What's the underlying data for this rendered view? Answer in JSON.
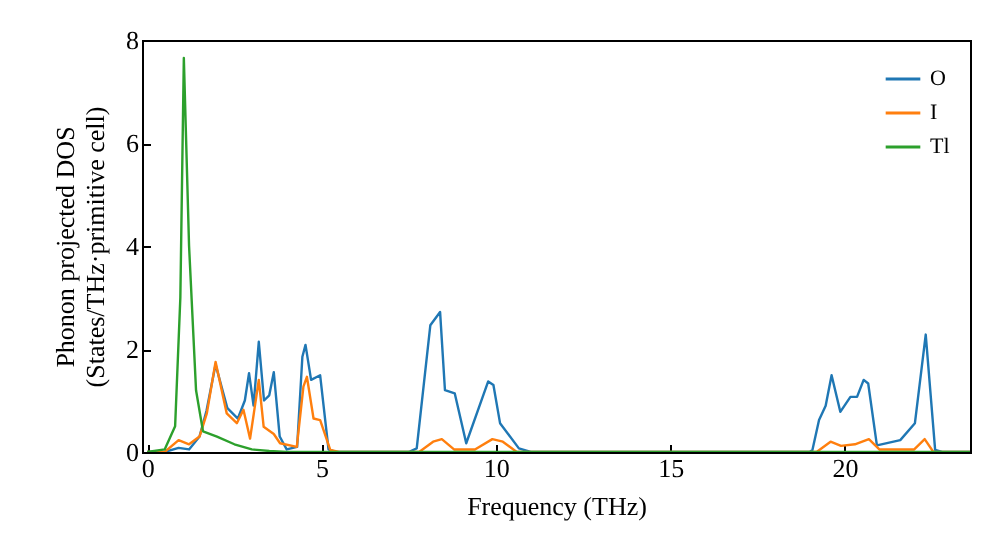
{
  "chart_data": {
    "type": "line",
    "xlabel": "Frequency (THz)",
    "ylabel": "Phonon projected DOS\n(States/THz·primitive cell)",
    "xlim": [
      -0.15,
      23.6
    ],
    "ylim": [
      0,
      8
    ],
    "xticks": [
      0,
      5,
      10,
      15,
      20
    ],
    "yticks": [
      0,
      2,
      4,
      6,
      8
    ],
    "grid": false,
    "legend": "top right",
    "line_style": "solid",
    "marker": "none",
    "series": [
      {
        "name": "O",
        "color": "#1f77b4",
        "x": [
          0,
          0.5,
          0.9,
          1.2,
          1.5,
          1.7,
          1.96,
          2.3,
          2.6,
          2.8,
          2.92,
          3.05,
          3.2,
          3.35,
          3.5,
          3.63,
          3.8,
          4.0,
          4.3,
          4.45,
          4.54,
          4.7,
          4.96,
          5.2,
          5.4,
          7.5,
          7.73,
          8.12,
          8.4,
          8.54,
          8.82,
          9.15,
          9.78,
          9.93,
          10.12,
          10.66,
          11,
          19,
          19.08,
          19.27,
          19.46,
          19.63,
          19.88,
          20.17,
          20.36,
          20.55,
          20.68,
          20.93,
          21.6,
          22.02,
          22.33,
          22.6,
          22.8,
          23.6
        ],
        "values": [
          0,
          0,
          0.08,
          0.05,
          0.3,
          0.8,
          1.7,
          0.85,
          0.65,
          1.0,
          1.53,
          0.9,
          2.14,
          1.0,
          1.1,
          1.55,
          0.3,
          0.05,
          0.1,
          1.85,
          2.08,
          1.4,
          1.49,
          0.05,
          0,
          0,
          0.07,
          2.46,
          2.72,
          1.2,
          1.14,
          0.17,
          1.37,
          1.3,
          0.56,
          0.07,
          0,
          0,
          0.04,
          0.62,
          0.9,
          1.49,
          0.78,
          1.07,
          1.07,
          1.4,
          1.33,
          0.13,
          0.23,
          0.56,
          2.28,
          0.04,
          0,
          0
        ]
      },
      {
        "name": "I",
        "color": "#ff7f0e",
        "x": [
          0,
          0.5,
          0.9,
          1.2,
          1.5,
          1.71,
          1.96,
          2.28,
          2.57,
          2.76,
          2.95,
          3.2,
          3.34,
          3.63,
          3.81,
          4.29,
          4.48,
          4.58,
          4.77,
          4.96,
          5.25,
          5.5,
          7.8,
          8.2,
          8.45,
          8.8,
          9.4,
          9.9,
          10.2,
          10.6,
          19.2,
          19.6,
          19.9,
          20.3,
          20.7,
          21,
          22,
          22.3,
          22.55,
          23.6
        ],
        "values": [
          0,
          0,
          0.23,
          0.15,
          0.3,
          0.75,
          1.75,
          0.75,
          0.56,
          0.82,
          0.26,
          1.4,
          0.49,
          0.35,
          0.17,
          0.1,
          1.27,
          1.46,
          0.65,
          0.62,
          0.04,
          0,
          0,
          0.2,
          0.25,
          0.05,
          0.05,
          0.25,
          0.2,
          0,
          0,
          0.2,
          0.12,
          0.15,
          0.25,
          0.05,
          0.05,
          0.25,
          0,
          0
        ]
      },
      {
        "name": "Tl",
        "color": "#2ca02c",
        "x": [
          0,
          0.5,
          0.8,
          0.95,
          1.05,
          1.2,
          1.4,
          1.6,
          2.0,
          2.5,
          3.0,
          3.5,
          4.0,
          23.6
        ],
        "values": [
          0,
          0.05,
          0.5,
          3.0,
          7.65,
          4.0,
          1.2,
          0.4,
          0.3,
          0.15,
          0.05,
          0.02,
          0,
          0
        ]
      }
    ]
  }
}
